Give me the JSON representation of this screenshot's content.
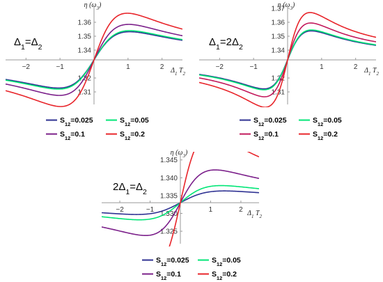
{
  "chart_data": [
    {
      "type": "line",
      "title": "Δ1=Δ2",
      "title_parts": {
        "a": "Δ",
        "a_sub": "1",
        "mid": "=Δ",
        "b_sub": "2"
      },
      "xlabel": "Δ1 T2",
      "xlabel_parts": {
        "a": "Δ",
        "a_sub": "1",
        "b": " T",
        "b_sub": "2"
      },
      "ylabel": "η (ω3)",
      "ylabel_parts": {
        "a": "η (ω",
        "a_sub": "3",
        "b": ")"
      },
      "xlim": [
        -2.6,
        2.6
      ],
      "ylim": [
        1.301,
        1.371
      ],
      "y_cross": 1.333,
      "x_ticks": [
        {
          "v": -2,
          "label": "−2"
        },
        {
          "v": -1,
          "label": "−1"
        },
        {
          "v": 1,
          "label": "1"
        },
        {
          "v": 2,
          "label": "2"
        }
      ],
      "y_ticks": [
        {
          "v": 1.31,
          "label": "1.31"
        },
        {
          "v": 1.32,
          "label": "1.32"
        },
        {
          "v": 1.34,
          "label": "1.34"
        },
        {
          "v": 1.35,
          "label": "1.35"
        },
        {
          "v": 1.36,
          "label": "1.36"
        }
      ],
      "series": [
        {
          "name": "S12=0.025",
          "legend_sub": "12",
          "legend_val": "=0.025",
          "color": "#2e3192",
          "amp": 0.0202,
          "w": 1.05
        },
        {
          "name": "S12=0.05",
          "legend_sub": "12",
          "legend_val": "=0.05",
          "color": "#00e676",
          "amp": 0.021,
          "w": 1.05
        },
        {
          "name": "S12=0.1",
          "legend_sub": "12",
          "legend_val": "=0.1",
          "color": "#7b1f8a",
          "amp": 0.0255,
          "w": 1.02
        },
        {
          "name": "S12=0.2",
          "legend_sub": "12",
          "legend_val": "=0.2",
          "color": "#e8242a",
          "amp": 0.0335,
          "w": 0.98
        }
      ]
    },
    {
      "type": "line",
      "title": "Δ1=2Δ2",
      "title_parts": {
        "a": "Δ",
        "a_sub": "1",
        "mid": "=2Δ",
        "b_sub": "2"
      },
      "xlabel": "Δ1 T2",
      "xlabel_parts": {
        "a": "Δ",
        "a_sub": "1",
        "b": " T",
        "b_sub": "2"
      },
      "ylabel": "η (ω3)",
      "ylabel_parts": {
        "a": "η (ω",
        "a_sub": "3",
        "b": ")"
      },
      "xlim": [
        -2.6,
        2.6
      ],
      "ylim": [
        1.301,
        1.371
      ],
      "y_cross": 1.333,
      "x_ticks": [
        {
          "v": -2,
          "label": "−2"
        },
        {
          "v": -1,
          "label": "−1"
        },
        {
          "v": 1,
          "label": "1"
        },
        {
          "v": 2,
          "label": "2"
        }
      ],
      "y_ticks": [
        {
          "v": 1.31,
          "label": "1.31"
        },
        {
          "v": 1.32,
          "label": "1.32"
        },
        {
          "v": 1.34,
          "label": "1.34"
        },
        {
          "v": 1.35,
          "label": "1.35"
        },
        {
          "v": 1.36,
          "label": "1.36"
        },
        {
          "v": 1.37,
          "label": "1.37"
        }
      ],
      "series": [
        {
          "name": "S12=0.025",
          "legend_sub": "12",
          "legend_val": "=0.025",
          "color": "#2e3192",
          "amp": 0.0208,
          "w": 0.7
        },
        {
          "name": "S12=0.05",
          "legend_sub": "12",
          "legend_val": "=0.05",
          "color": "#00e676",
          "amp": 0.0215,
          "w": 0.7
        },
        {
          "name": "S12=0.1",
          "legend_sub": "12",
          "legend_val": "=0.1",
          "color": "#c2185b",
          "amp": 0.0265,
          "w": 0.68
        },
        {
          "name": "S12=0.2",
          "legend_sub": "12",
          "legend_val": "=0.2",
          "color": "#e8242a",
          "amp": 0.034,
          "w": 0.66
        }
      ]
    },
    {
      "type": "line",
      "title": "2Δ1=Δ2",
      "title_parts": {
        "a": "2Δ",
        "a_sub": "1",
        "mid": "=Δ",
        "b_sub": "2"
      },
      "xlabel": "Δ1 T2",
      "xlabel_parts": {
        "a": "Δ",
        "a_sub": "1",
        "b": " T",
        "b_sub": "2"
      },
      "ylabel": "η (ω3)",
      "ylabel_parts": {
        "a": "η (ω",
        "a_sub": "3",
        "b": ")"
      },
      "xlim": [
        -2.6,
        2.6
      ],
      "ylim": [
        1.3215,
        1.3465
      ],
      "y_cross": 1.333,
      "x_ticks": [
        {
          "v": -2,
          "label": "−2"
        },
        {
          "v": -1,
          "label": "−1"
        },
        {
          "v": 1,
          "label": "1"
        },
        {
          "v": 2,
          "label": "2"
        }
      ],
      "y_ticks": [
        {
          "v": 1.325,
          "label": "1.325"
        },
        {
          "v": 1.33,
          "label": "1.330"
        },
        {
          "v": 1.335,
          "label": "1.335"
        },
        {
          "v": 1.34,
          "label": "1.340"
        },
        {
          "v": 1.345,
          "label": "1.345"
        }
      ],
      "series": [
        {
          "name": "S12=0.025",
          "legend_sub": "12",
          "legend_val": "=0.025",
          "color": "#2e3192",
          "amp": 0.0033,
          "w": 1.45
        },
        {
          "name": "S12=0.05",
          "legend_sub": "12",
          "legend_val": "=0.05",
          "color": "#00e676",
          "amp": 0.0048,
          "w": 1.35
        },
        {
          "name": "S12=0.1",
          "legend_sub": "12",
          "legend_val": "=0.1",
          "color": "#7b1f8a",
          "amp": 0.0092,
          "w": 1.15
        },
        {
          "name": "S12=0.2",
          "legend_sub": "12",
          "legend_val": "=0.2",
          "color": "#e8242a",
          "amp": 0.0192,
          "w": 1.0
        }
      ]
    }
  ]
}
